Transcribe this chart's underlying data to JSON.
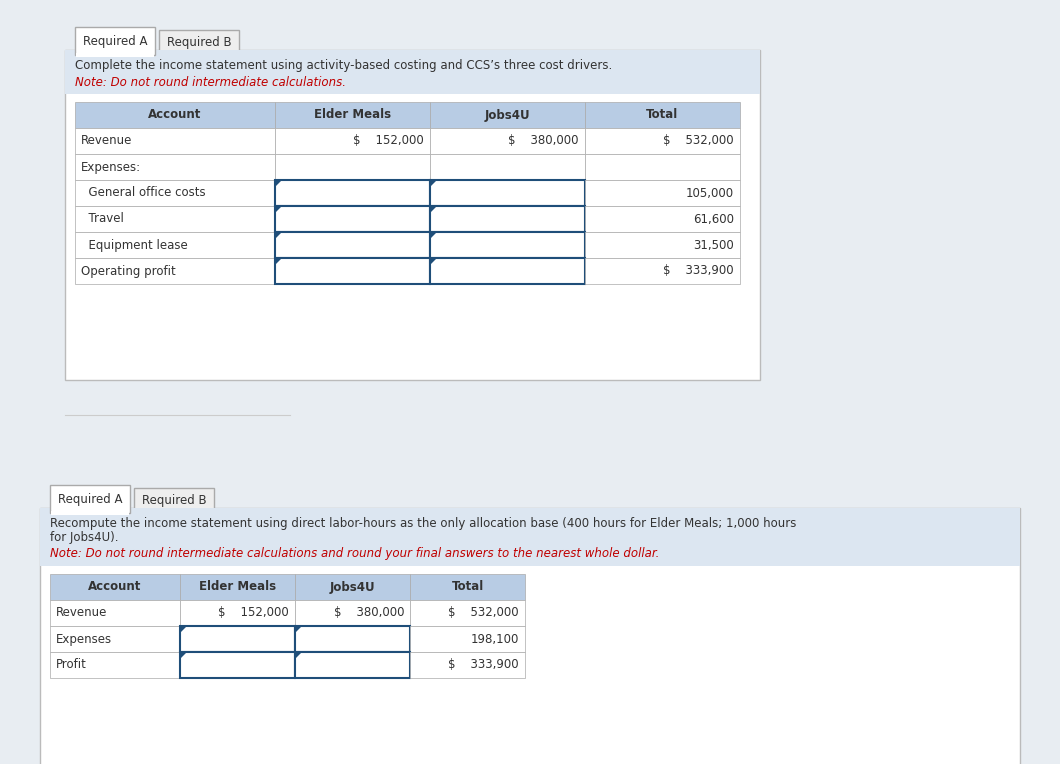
{
  "panel1": {
    "tab_active": "Required A",
    "tab_inactive": "Required B",
    "instruction_line1": "Complete the income statement using activity-based costing and CCS’s three cost drivers.",
    "instruction_line2": "",
    "note_text": "Note: Do not round intermediate calculations.",
    "header": [
      "Account",
      "Elder Meals",
      "Jobs4U",
      "Total"
    ],
    "rows": [
      {
        "label": "Revenue",
        "elder": "$    152,000",
        "jobs": "$    380,000",
        "total": "$    532,000",
        "indent": false,
        "input": false
      },
      {
        "label": "Expenses:",
        "elder": "",
        "jobs": "",
        "total": "",
        "indent": false,
        "input": false
      },
      {
        "label": "  General office costs",
        "elder": "",
        "jobs": "",
        "total": "105,000",
        "indent": true,
        "input": true
      },
      {
        "label": "  Travel",
        "elder": "",
        "jobs": "",
        "total": "61,600",
        "indent": true,
        "input": true
      },
      {
        "label": "  Equipment lease",
        "elder": "",
        "jobs": "",
        "total": "31,500",
        "indent": true,
        "input": true
      },
      {
        "label": "Operating profit",
        "elder": "",
        "jobs": "",
        "total": "$    333,900",
        "indent": false,
        "input": true
      }
    ]
  },
  "panel2": {
    "tab_active": "Required A",
    "tab_inactive": "Required B",
    "instruction_line1": "Recompute the income statement using direct labor-hours as the only allocation base (400 hours for Elder Meals; 1,000 hours",
    "instruction_line2": "for Jobs4U).",
    "note_text": "Note: Do not round intermediate calculations and round your final answers to the nearest whole dollar.",
    "header": [
      "Account",
      "Elder Meals",
      "Jobs4U",
      "Total"
    ],
    "rows": [
      {
        "label": "Revenue",
        "elder": "$    152,000",
        "jobs": "$    380,000",
        "total": "$    532,000",
        "indent": false,
        "input": false
      },
      {
        "label": "Expenses",
        "elder": "",
        "jobs": "",
        "total": "198,100",
        "indent": false,
        "input": true
      },
      {
        "label": "Profit",
        "elder": "",
        "jobs": "",
        "total": "$    333,900",
        "indent": false,
        "input": true
      }
    ]
  },
  "page_bg": "#e8edf2",
  "panel_bg": "#ffffff",
  "panel_border": "#bbbbbb",
  "header_bg": "#b8cce4",
  "header_text": "#333333",
  "instruction_bg": "#dce6f1",
  "tab_active_bg": "#ffffff",
  "tab_inactive_bg": "#eeeeee",
  "tab_border": "#aaaaaa",
  "input_border": "#1f4e79",
  "input_bg": "#ffffff",
  "cell_bg": "#ffffff",
  "cell_border": "#aaaaaa",
  "note_color": "#c00000",
  "text_color": "#333333",
  "font_size": 8.5,
  "header_font_size": 8.5
}
